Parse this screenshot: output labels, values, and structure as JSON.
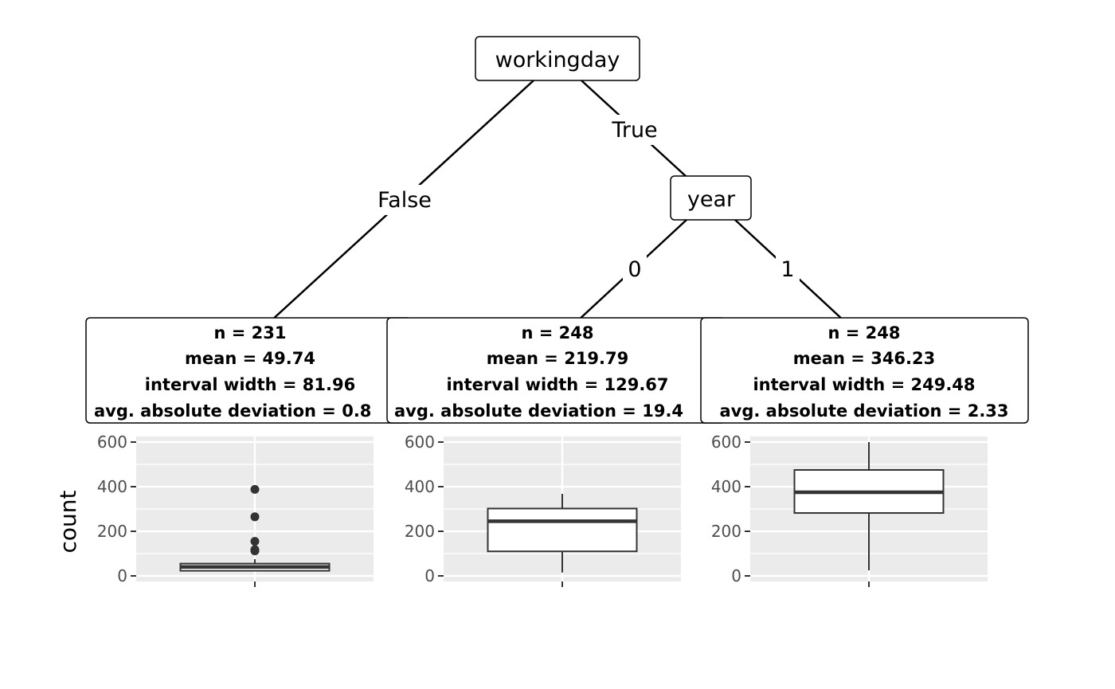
{
  "tree": {
    "root": {
      "label": "workingday",
      "left_edge": "False",
      "right_edge": "True"
    },
    "year_node": {
      "label": "year",
      "left_edge": "0",
      "right_edge": "1"
    },
    "leaves": [
      {
        "n": "n = 231",
        "mean": "mean = 49.74",
        "interval": "interval width = 81.96",
        "aad": "avg. absolute deviation = 0.8"
      },
      {
        "n": "n = 248",
        "mean": "mean = 219.79",
        "interval": "interval width = 129.67",
        "aad": "avg. absolute deviation = 19.4"
      },
      {
        "n": "n = 248",
        "mean": "mean = 346.23",
        "interval": "interval width = 249.48",
        "aad": "avg. absolute deviation = 2.33"
      }
    ]
  },
  "chart_data": {
    "type": "box",
    "ylabel": "count",
    "ylim": [
      -25,
      625
    ],
    "yticks": [
      0,
      200,
      400,
      600
    ],
    "grid": true,
    "colors": {
      "panel_bg": "#ebebeb",
      "grid": "#ffffff",
      "box_line": "#333333",
      "box_fill": "#ffffff"
    },
    "panels": [
      {
        "min": 20,
        "q1": 23,
        "median": 40,
        "q3": 55,
        "max": 75,
        "outliers": [
          112,
          118,
          155,
          265,
          388
        ]
      },
      {
        "min": 15,
        "q1": 110,
        "median": 245,
        "q3": 302,
        "max": 368,
        "outliers": []
      },
      {
        "min": 25,
        "q1": 282,
        "median": 375,
        "q3": 475,
        "max": 600,
        "outliers": []
      }
    ]
  }
}
